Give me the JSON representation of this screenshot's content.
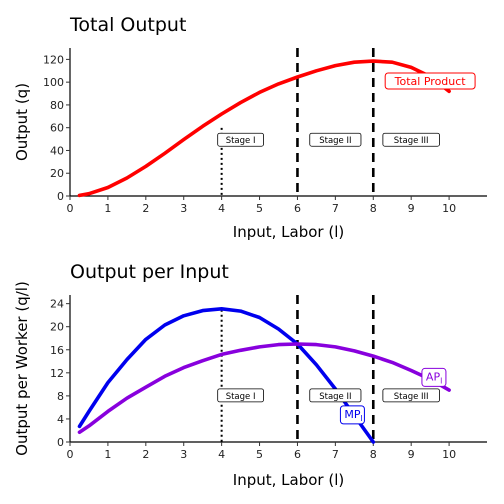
{
  "chart_data": [
    {
      "type": "line",
      "title": "Total Output",
      "xlabel": "Input, Labor (l)",
      "ylabel": "Output (q)",
      "xlim": [
        0,
        11
      ],
      "ylim": [
        0,
        130
      ],
      "xticks": [
        0,
        1,
        2,
        3,
        4,
        5,
        6,
        7,
        8,
        9,
        10
      ],
      "yticks": [
        0,
        20,
        40,
        60,
        80,
        100,
        120
      ],
      "grid": false,
      "series": [
        {
          "name": "Total Product",
          "color": "#ff0000",
          "x": [
            0.25,
            0.5,
            1,
            1.5,
            2,
            2.5,
            3,
            3.5,
            4,
            4.5,
            5,
            5.5,
            6,
            6.5,
            7,
            7.5,
            8,
            8.5,
            9,
            9.5,
            10
          ],
          "values": [
            0.5,
            2,
            7.5,
            15.8,
            26,
            37.5,
            49.5,
            61.2,
            72,
            82,
            91,
            98.5,
            104.5,
            110,
            114.5,
            117.5,
            118.5,
            117.5,
            113,
            105,
            92
          ]
        }
      ],
      "vlines": [
        {
          "x": 4,
          "style": "dotted"
        },
        {
          "x": 6,
          "style": "dashed"
        },
        {
          "x": 8,
          "style": "dashed"
        }
      ],
      "stage_labels": [
        {
          "text": "Stage I",
          "x": 4.5,
          "y": 49
        },
        {
          "text": "Stage II",
          "x": 7,
          "y": 49
        },
        {
          "text": "Stage III",
          "x": 9,
          "y": 49
        }
      ],
      "series_label": {
        "text": "Total Product",
        "x": 9.5,
        "y": 101
      }
    },
    {
      "type": "line",
      "title": "Output per Input",
      "xlabel": "Input, Labor (l)",
      "ylabel": "Output per Worker (q/l)",
      "xlim": [
        0,
        11
      ],
      "ylim": [
        0,
        25.5
      ],
      "xticks": [
        0,
        1,
        2,
        3,
        4,
        5,
        6,
        7,
        8,
        9,
        10
      ],
      "yticks": [
        0,
        4,
        8,
        12,
        16,
        20,
        24
      ],
      "grid": false,
      "series": [
        {
          "name": "MP",
          "color": "#0000ee",
          "x": [
            0.25,
            0.5,
            1,
            1.5,
            2,
            2.5,
            3,
            3.5,
            4,
            4.5,
            5,
            5.5,
            6,
            6.5,
            7,
            7.5,
            8
          ],
          "values": [
            2.7,
            5.3,
            10.3,
            14.3,
            17.8,
            20.3,
            21.9,
            22.8,
            23.1,
            22.7,
            21.6,
            19.6,
            17,
            13.4,
            9.2,
            4.6,
            0
          ]
        },
        {
          "name": "AP",
          "color": "#8800dd",
          "x": [
            0.25,
            0.5,
            1,
            1.5,
            2,
            2.5,
            3,
            3.5,
            4,
            4.5,
            5,
            5.5,
            6,
            6.5,
            7,
            7.5,
            8,
            8.5,
            9,
            9.5,
            10
          ],
          "values": [
            1.7,
            2.8,
            5.3,
            7.6,
            9.5,
            11.4,
            12.9,
            14.1,
            15.2,
            15.9,
            16.5,
            16.9,
            17,
            16.9,
            16.5,
            15.8,
            14.9,
            13.8,
            12.4,
            10.9,
            9
          ]
        }
      ],
      "vlines": [
        {
          "x": 4,
          "style": "dotted"
        },
        {
          "x": 6,
          "style": "dashed"
        },
        {
          "x": 8,
          "style": "dashed"
        }
      ],
      "stage_labels": [
        {
          "text": "Stage I",
          "x": 4.5,
          "y": 8
        },
        {
          "text": "Stage II",
          "x": 7,
          "y": 8
        },
        {
          "text": "Stage III",
          "x": 9,
          "y": 8
        }
      ],
      "series_labels": [
        {
          "main": "MP",
          "sub": "l",
          "series": "MP",
          "x": 7.45,
          "y": 4.7
        },
        {
          "main": "AP",
          "sub": "l",
          "series": "AP",
          "x": 9.6,
          "y": 11.2
        }
      ]
    }
  ]
}
